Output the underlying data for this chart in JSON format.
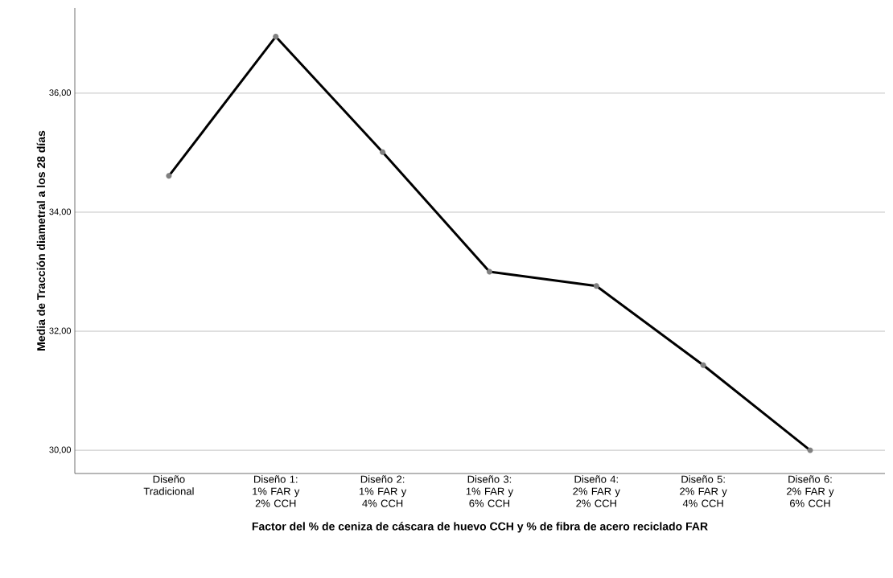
{
  "chart_data": {
    "type": "line",
    "xlabel": "Factor del % de ceniza de cáscara de huevo CCH y % de fibra de acero reciclado FAR",
    "ylabel": "Media de Tracción diametral a los 28 días",
    "categories": [
      "Diseño Tradicional",
      "Diseño 1: 1% FAR y 2% CCH",
      "Diseño 2: 1% FAR y 4% CCH",
      "Diseño 3: 1% FAR y 6% CCH",
      "Diseño 4: 2% FAR y 2% CCH",
      "Diseño 5: 2% FAR y 4% CCH",
      "Diseño 6: 2% FAR y 6% CCH"
    ],
    "series": [
      {
        "color": "#000000",
        "values": [
          34.61,
          36.95,
          35.01,
          33.0,
          32.76,
          31.43,
          30.0
        ]
      }
    ],
    "ylim": [
      29.61,
      37.43
    ],
    "yticks": [
      {
        "value": 30,
        "label": "30,00"
      },
      {
        "value": 32,
        "label": "32,00"
      },
      {
        "value": 34,
        "label": "34,00"
      },
      {
        "value": 36,
        "label": "36,00"
      }
    ],
    "grid": "y",
    "marker": "circle",
    "line_style": "solid"
  }
}
